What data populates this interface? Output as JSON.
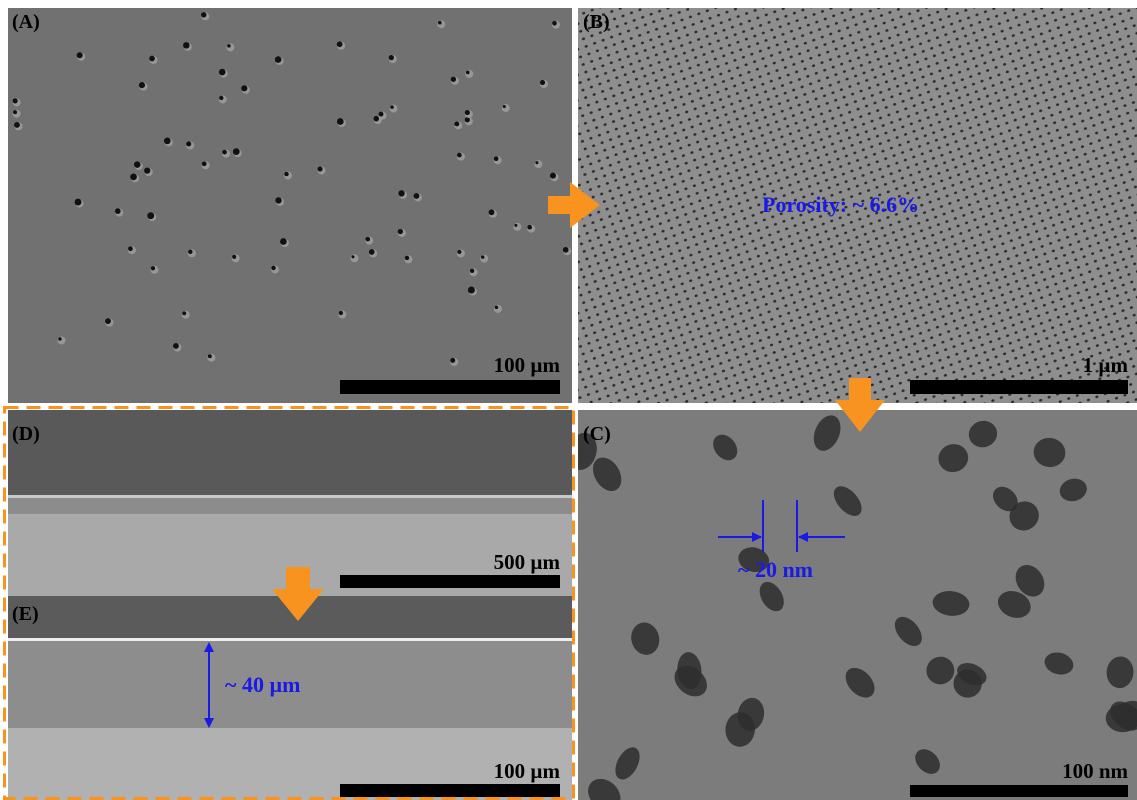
{
  "panels": [
    {
      "label": "(A)",
      "scale_bar": "100 µm"
    },
    {
      "label": "(B)",
      "scale_bar": "1 µm",
      "annotation": "Porosity: ~ 6.6%"
    },
    {
      "label": "(C)",
      "scale_bar": "100 nm",
      "annotation": "~ 20 nm"
    },
    {
      "label": "(D)",
      "scale_bar": "500 µm"
    },
    {
      "label": "(E)",
      "scale_bar": "100 µm",
      "annotation": "~ 40 µm"
    }
  ]
}
